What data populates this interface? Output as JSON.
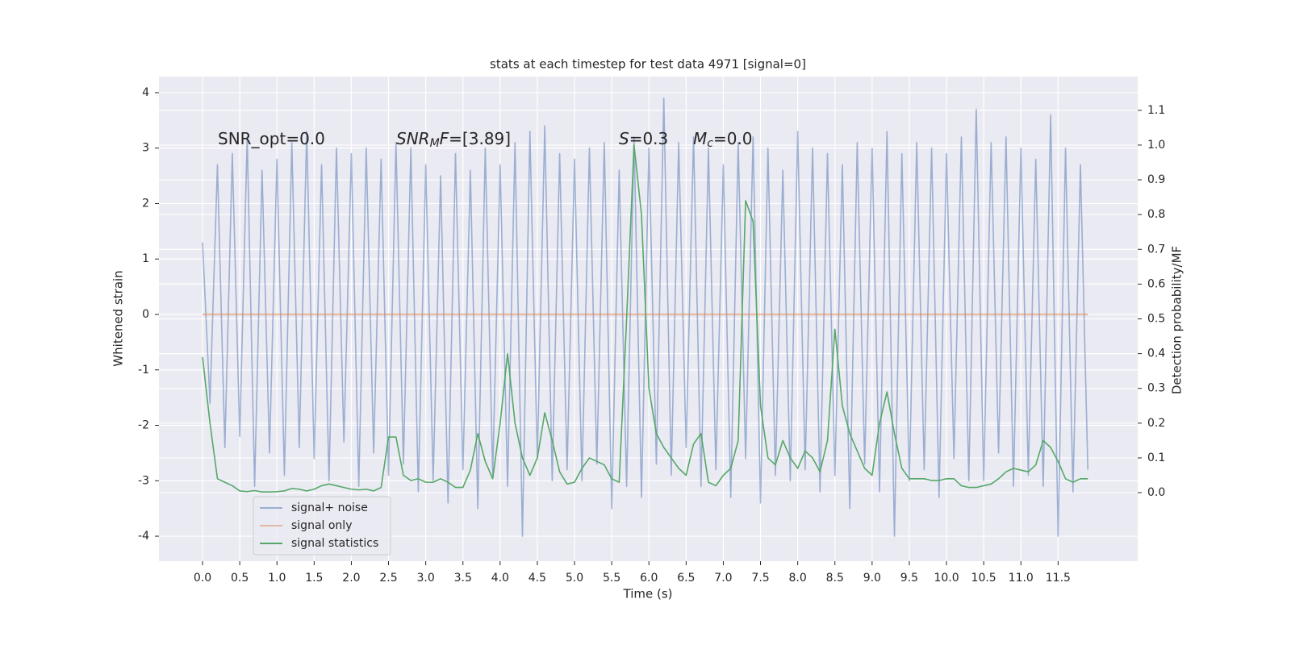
{
  "chart_data": {
    "type": "line",
    "title": "stats at each timestep for test data 4971 [signal=0]",
    "xlabel": "Time (s)",
    "ylabel": "Whitened strain",
    "y2label": "Detection probability/MF",
    "annotations": [
      [
        {
          "text": "SNR_opt=0.0",
          "style": "normal"
        }
      ],
      [
        {
          "text": "SNR",
          "style": "italic"
        },
        {
          "text": "M",
          "style": "sub"
        },
        {
          "text": "F",
          "style": "italic"
        },
        {
          "text": "=[3.89]",
          "style": "normal"
        }
      ],
      [
        {
          "text": "S",
          "style": "italic"
        },
        {
          "text": "=0.3",
          "style": "normal"
        }
      ],
      [
        {
          "text": "M",
          "style": "italic"
        },
        {
          "text": "c",
          "style": "sub"
        },
        {
          "text": "=0.0",
          "style": "normal"
        }
      ]
    ],
    "x": [
      0,
      0.1,
      0.2,
      0.3,
      0.4,
      0.5,
      0.6,
      0.7,
      0.8,
      0.9,
      1,
      1.1,
      1.2,
      1.3,
      1.4,
      1.5,
      1.6,
      1.7,
      1.8,
      1.9,
      2,
      2.1,
      2.2,
      2.3,
      2.4,
      2.5,
      2.6,
      2.7,
      2.8,
      2.9,
      3,
      3.1,
      3.2,
      3.3,
      3.4,
      3.5,
      3.6,
      3.7,
      3.8,
      3.9,
      4,
      4.1,
      4.2,
      4.3,
      4.4,
      4.5,
      4.6,
      4.7,
      4.8,
      4.9,
      5,
      5.1,
      5.2,
      5.3,
      5.4,
      5.5,
      5.6,
      5.7,
      5.8,
      5.9,
      6,
      6.1,
      6.2,
      6.3,
      6.4,
      6.5,
      6.6,
      6.7,
      6.8,
      6.9,
      7,
      7.1,
      7.2,
      7.3,
      7.4,
      7.5,
      7.6,
      7.7,
      7.8,
      7.9,
      8,
      8.1,
      8.2,
      8.3,
      8.4,
      8.5,
      8.6,
      8.7,
      8.8,
      8.9,
      9,
      9.1,
      9.2,
      9.3,
      9.4,
      9.5,
      9.6,
      9.7,
      9.8,
      9.9,
      10,
      10.1,
      10.2,
      10.3,
      10.4,
      10.5,
      10.6,
      10.7,
      10.8,
      10.9,
      11,
      11.1,
      11.2,
      11.3,
      11.4,
      11.5,
      11.6,
      11.7,
      11.8,
      11.9
    ],
    "series": [
      {
        "name": "signal+ noise",
        "color": "#4c72b0",
        "alpha": 0.5,
        "axis": "y",
        "values": [
          1.3,
          -1.6,
          2.7,
          -2.4,
          2.9,
          -2.2,
          3.2,
          -3.1,
          2.6,
          -2.5,
          2.8,
          -2.9,
          3.1,
          -2.4,
          3.3,
          -2.6,
          2.7,
          -3.0,
          3.0,
          -2.3,
          2.9,
          -3.1,
          3.0,
          -2.5,
          2.8,
          -2.9,
          3.1,
          -2.7,
          3.0,
          -3.2,
          2.7,
          -3.0,
          2.5,
          -3.4,
          2.9,
          -2.8,
          2.6,
          -3.5,
          3.0,
          -2.9,
          2.7,
          -3.1,
          3.1,
          -4.0,
          3.3,
          -2.6,
          3.4,
          -3.0,
          2.9,
          -2.8,
          2.8,
          -3.0,
          3.0,
          -2.7,
          3.1,
          -3.5,
          2.6,
          -3.1,
          3.2,
          -3.3,
          3.0,
          -2.7,
          3.9,
          -2.9,
          3.1,
          -2.4,
          3.2,
          -3.1,
          3.0,
          -2.8,
          2.7,
          -3.3,
          3.1,
          -2.6,
          3.2,
          -3.4,
          3.0,
          -2.9,
          2.6,
          -3.0,
          3.3,
          -2.8,
          3.0,
          -3.2,
          2.9,
          -2.9,
          2.7,
          -3.5,
          3.1,
          -2.7,
          3.0,
          -3.2,
          3.3,
          -4.0,
          2.9,
          -3.0,
          3.1,
          -2.8,
          3.0,
          -3.3,
          2.9,
          -2.6,
          3.2,
          -3.0,
          3.7,
          -3.0,
          3.1,
          -2.5,
          3.2,
          -3.1,
          3.0,
          -2.9,
          2.8,
          -3.1,
          3.6,
          -4.0,
          3.0,
          -3.2,
          2.7,
          -2.8
        ]
      },
      {
        "name": "signal only",
        "color": "#dd8452",
        "alpha": 0.5,
        "axis": "y",
        "values": [
          0,
          0,
          0,
          0,
          0,
          0,
          0,
          0,
          0,
          0,
          0,
          0,
          0,
          0,
          0,
          0,
          0,
          0,
          0,
          0,
          0,
          0,
          0,
          0,
          0,
          0,
          0,
          0,
          0,
          0,
          0,
          0,
          0,
          0,
          0,
          0,
          0,
          0,
          0,
          0,
          0,
          0,
          0,
          0,
          0,
          0,
          0,
          0,
          0,
          0,
          0,
          0,
          0,
          0,
          0,
          0,
          0,
          0,
          0,
          0,
          0,
          0,
          0,
          0,
          0,
          0,
          0,
          0,
          0,
          0,
          0,
          0,
          0,
          0,
          0,
          0,
          0,
          0,
          0,
          0,
          0,
          0,
          0,
          0,
          0,
          0,
          0,
          0,
          0,
          0,
          0,
          0,
          0,
          0,
          0,
          0,
          0,
          0,
          0,
          0,
          0,
          0,
          0,
          0,
          0,
          0,
          0,
          0,
          0,
          0,
          0,
          0,
          0,
          0,
          0,
          0,
          0,
          0,
          0,
          0
        ]
      },
      {
        "name": "signal statistics",
        "color": "#55a868",
        "alpha": 1,
        "axis": "y2",
        "values": [
          0.39,
          0.2,
          0.04,
          0.03,
          0.02,
          0.005,
          0.003,
          0.006,
          0.002,
          0.002,
          0.003,
          0.005,
          0.012,
          0.01,
          0.005,
          0.01,
          0.02,
          0.025,
          0.02,
          0.015,
          0.01,
          0.008,
          0.01,
          0.005,
          0.015,
          0.16,
          0.16,
          0.05,
          0.035,
          0.04,
          0.03,
          0.03,
          0.04,
          0.03,
          0.015,
          0.015,
          0.065,
          0.17,
          0.09,
          0.04,
          0.2,
          0.4,
          0.2,
          0.1,
          0.05,
          0.1,
          0.23,
          0.15,
          0.06,
          0.025,
          0.03,
          0.07,
          0.1,
          0.09,
          0.08,
          0.04,
          0.03,
          0.5,
          1.0,
          0.8,
          0.3,
          0.17,
          0.13,
          0.1,
          0.07,
          0.05,
          0.14,
          0.17,
          0.03,
          0.02,
          0.05,
          0.07,
          0.15,
          0.84,
          0.78,
          0.25,
          0.1,
          0.08,
          0.15,
          0.1,
          0.07,
          0.12,
          0.1,
          0.06,
          0.15,
          0.47,
          0.25,
          0.17,
          0.12,
          0.07,
          0.05,
          0.2,
          0.29,
          0.17,
          0.07,
          0.04,
          0.04,
          0.04,
          0.035,
          0.035,
          0.04,
          0.04,
          0.02,
          0.015,
          0.015,
          0.02,
          0.025,
          0.04,
          0.06,
          0.07,
          0.065,
          0.06,
          0.08,
          0.15,
          0.13,
          0.09,
          0.04,
          0.03,
          0.04,
          0.04
        ]
      }
    ],
    "xlim": [
      -0.586,
      12.57
    ],
    "xticks": [
      {
        "value": 0,
        "label": "0.0"
      },
      0.5,
      {
        "value": 1,
        "label": "1.0"
      },
      1.5,
      {
        "value": 2,
        "label": "2.0"
      },
      2.5,
      {
        "value": 3,
        "label": "3.0"
      },
      3.5,
      {
        "value": 4,
        "label": "4.0"
      },
      4.5,
      {
        "value": 5,
        "label": "5.0"
      },
      5.5,
      {
        "value": 6,
        "label": "6.0"
      },
      6.5,
      {
        "value": 7,
        "label": "7.0"
      },
      7.5,
      {
        "value": 8,
        "label": "8.0"
      },
      8.5,
      {
        "value": 9,
        "label": "9.0"
      },
      9.5,
      {
        "value": 10,
        "label": "10.0"
      },
      10.5,
      {
        "value": 11,
        "label": "11.0"
      },
      11.5
    ],
    "ylim": [
      -4.45,
      4.29
    ],
    "yticks": [
      -4,
      -3,
      -2,
      -1,
      0,
      1,
      2,
      3,
      4
    ],
    "y2lim": [
      -0.197,
      1.197
    ],
    "y2ticks": [
      {
        "value": 0,
        "label": "0.0"
      },
      0.1,
      0.2,
      0.3,
      0.4,
      0.5,
      0.6,
      0.7,
      0.8,
      0.9,
      {
        "value": 1,
        "label": "1.0"
      },
      1.1
    ],
    "grid": true,
    "legend": "lower left"
  }
}
